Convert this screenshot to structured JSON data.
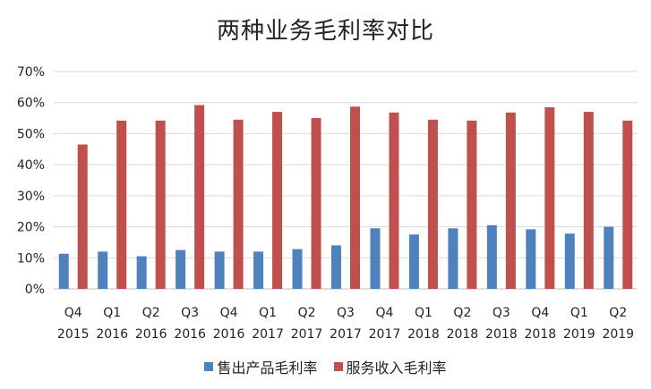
{
  "chart_data": {
    "type": "bar",
    "title": "两种业务毛利率对比",
    "categories": [
      [
        "Q4",
        "2015"
      ],
      [
        "Q1",
        "2016"
      ],
      [
        "Q2",
        "2016"
      ],
      [
        "Q3",
        "2016"
      ],
      [
        "Q4",
        "2016"
      ],
      [
        "Q1",
        "2017"
      ],
      [
        "Q2",
        "2017"
      ],
      [
        "Q3",
        "2017"
      ],
      [
        "Q4",
        "2017"
      ],
      [
        "Q1",
        "2018"
      ],
      [
        "Q2",
        "2018"
      ],
      [
        "Q3",
        "2018"
      ],
      [
        "Q4",
        "2018"
      ],
      [
        "Q1",
        "2019"
      ],
      [
        "Q2",
        "2019"
      ]
    ],
    "series": [
      {
        "name": "售出产品毛利率",
        "color": "#4f81bd",
        "values": [
          11.3,
          12.0,
          10.5,
          12.5,
          12.0,
          12.0,
          12.8,
          14.0,
          19.5,
          17.5,
          19.5,
          20.5,
          19.2,
          17.8,
          20.0
        ]
      },
      {
        "name": "服务收入毛利率",
        "color": "#c0504d",
        "values": [
          46.5,
          54.2,
          54.2,
          59.2,
          54.5,
          57.0,
          55.0,
          58.7,
          56.8,
          54.5,
          54.2,
          56.8,
          58.5,
          57.0,
          54.2
        ]
      }
    ],
    "yticks": [
      "0%",
      "10%",
      "20%",
      "30%",
      "40%",
      "50%",
      "60%",
      "70%"
    ],
    "ylim": [
      0,
      70
    ],
    "xlabel": "",
    "ylabel": "",
    "legend_position": "bottom",
    "grid": true,
    "colors": {
      "gridline": "#d9d9d9",
      "axis": "#bfbfbf"
    }
  }
}
